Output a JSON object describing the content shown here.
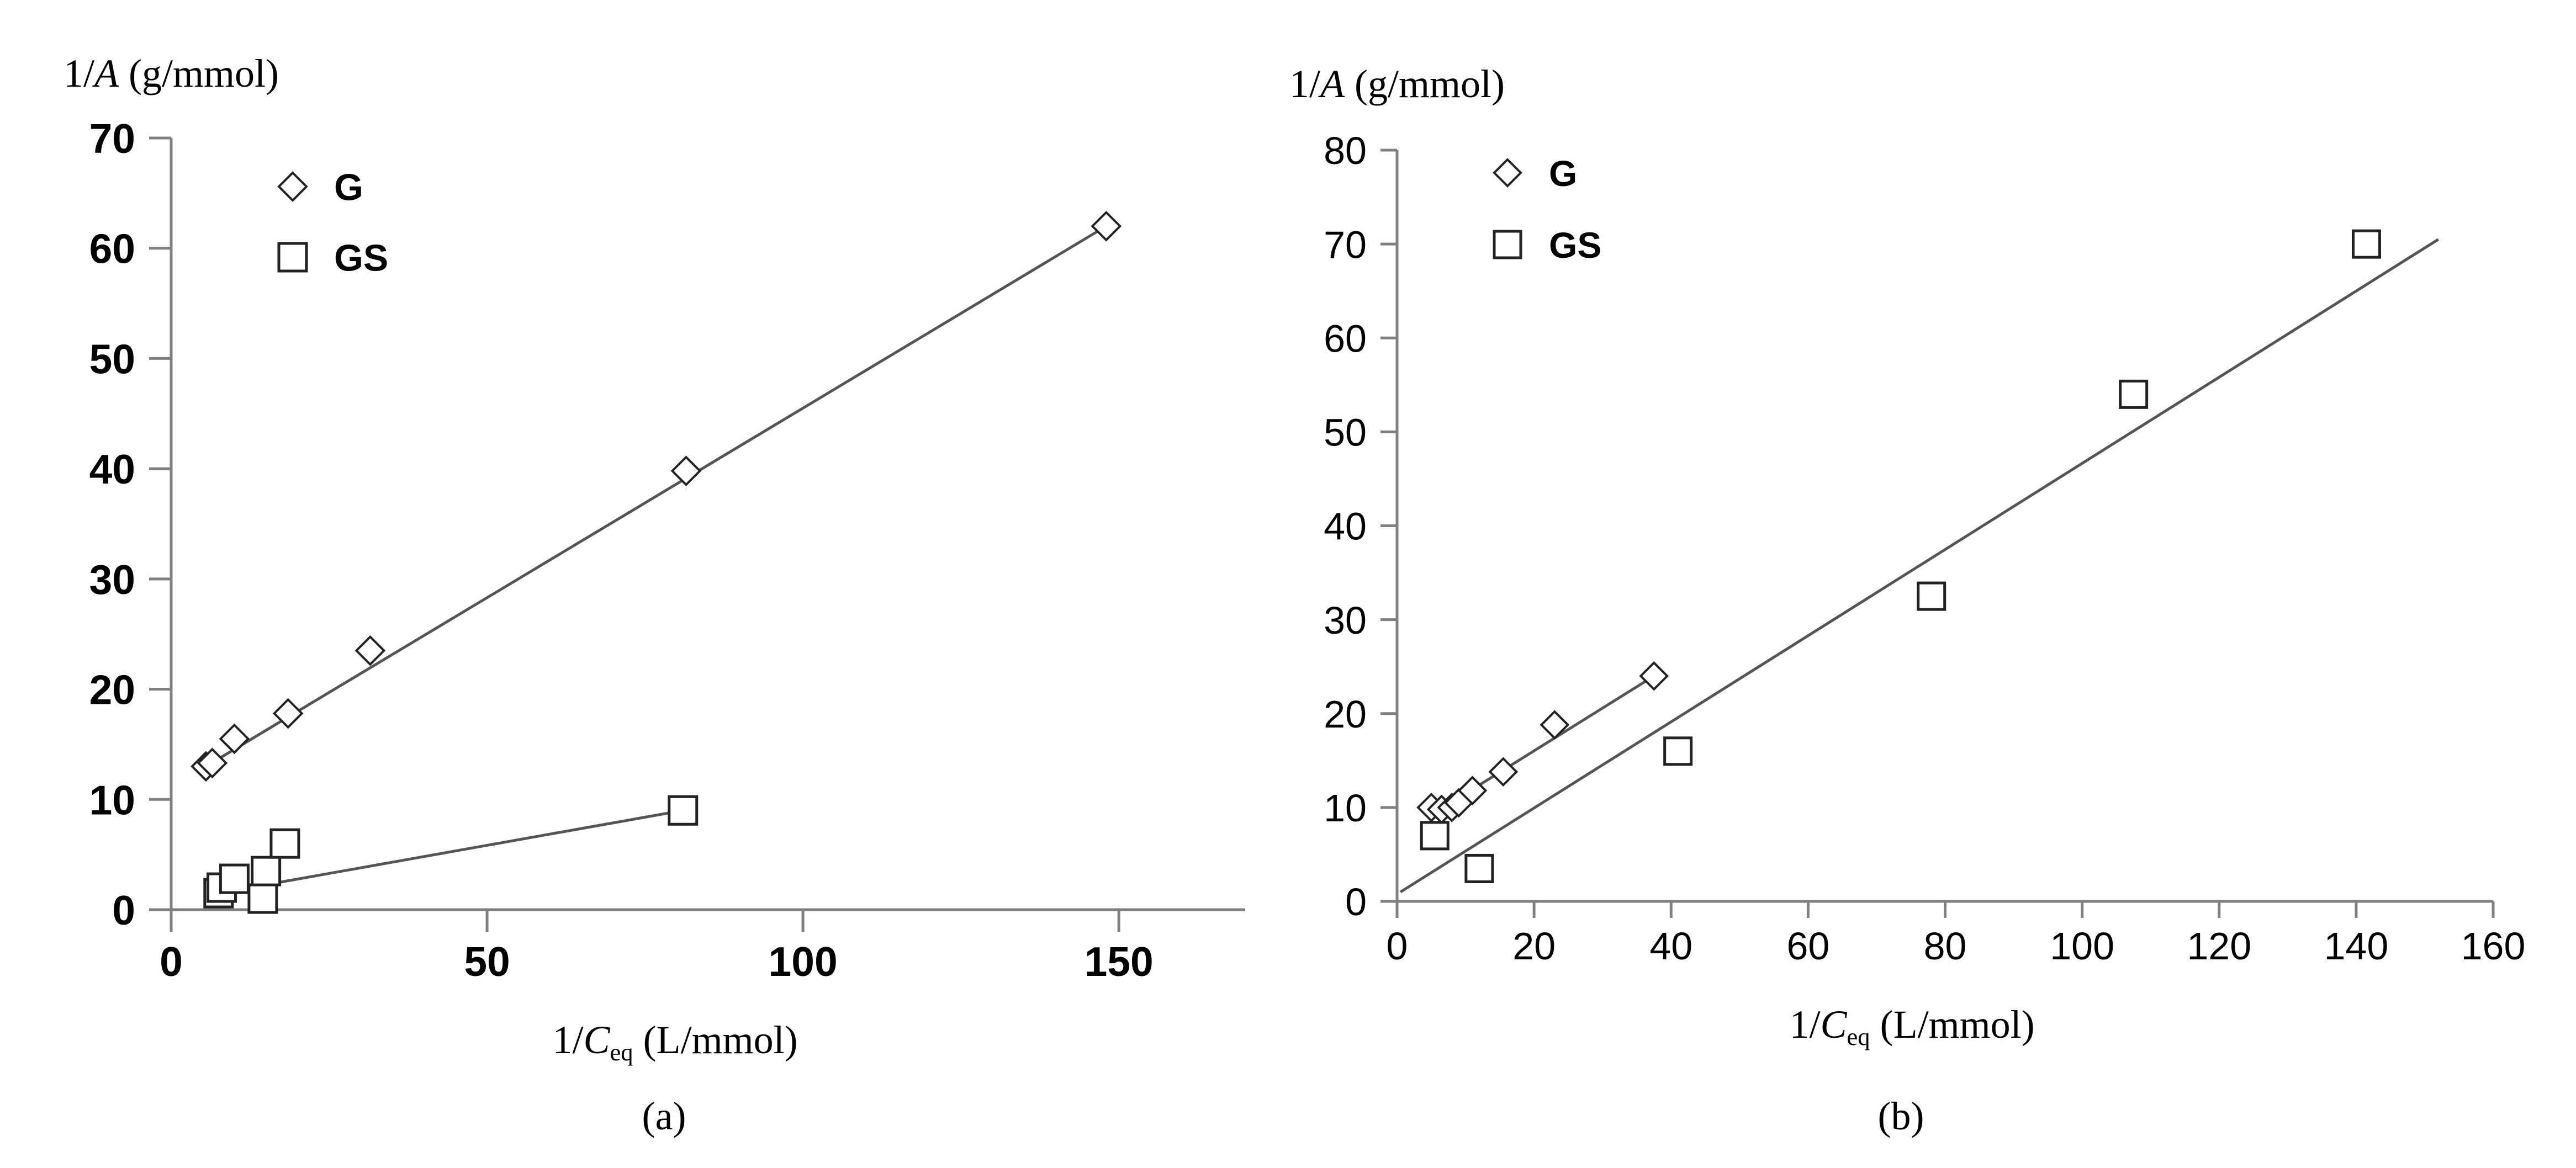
{
  "chart_data": [
    {
      "panel_label": "(a)",
      "type": "scatter",
      "title": "",
      "ylabel": "1/A (g/mmol)",
      "ylabel_parts": {
        "prefix": "1/",
        "var": "A",
        "unit": " (g/mmol)"
      },
      "xlabel": "1/Ceq (L/mmol)",
      "xlabel_parts": {
        "prefix": "1/",
        "var": "C",
        "sub": "eq",
        "unit": " (L/mmol)"
      },
      "xlim": [
        0,
        170
      ],
      "ylim": [
        0,
        70
      ],
      "xticks": [
        0,
        50,
        100,
        150
      ],
      "yticks": [
        0,
        10,
        20,
        30,
        40,
        50,
        60,
        70
      ],
      "tick_font_weight": "bold",
      "grid": false,
      "legend_position": "top-left",
      "series": [
        {
          "name": "G",
          "marker": "diamond",
          "points": [
            [
              5.5,
              13
            ],
            [
              6.5,
              13.3
            ],
            [
              10,
              15.5
            ],
            [
              18.5,
              17.8
            ],
            [
              31.5,
              23.5
            ],
            [
              81.5,
              39.8
            ],
            [
              148,
              62
            ]
          ],
          "fit": [
            [
              5.5,
              13
            ],
            [
              148,
              62
            ]
          ]
        },
        {
          "name": "GS",
          "marker": "square",
          "points": [
            [
              7.5,
              1.5
            ],
            [
              8,
              2
            ],
            [
              10,
              2.8
            ],
            [
              14.5,
              1
            ],
            [
              15,
              3.5
            ],
            [
              18,
              6
            ],
            [
              81,
              9
            ]
          ],
          "fit": [
            [
              7.5,
              1.5
            ],
            [
              81,
              9
            ]
          ]
        }
      ]
    },
    {
      "panel_label": "(b)",
      "type": "scatter",
      "title": "",
      "ylabel": "1/A (g/mmol)",
      "ylabel_parts": {
        "prefix": "1/",
        "var": "A",
        "unit": " (g/mmol)"
      },
      "xlabel": "1/Ceq (L/mmol)",
      "xlabel_parts": {
        "prefix": "1/",
        "var": "C",
        "sub": "eq",
        "unit": " (L/mmol)"
      },
      "xlim": [
        0,
        160
      ],
      "ylim": [
        0,
        80
      ],
      "xticks": [
        0,
        20,
        40,
        60,
        80,
        100,
        120,
        140,
        160
      ],
      "yticks": [
        0,
        10,
        20,
        30,
        40,
        50,
        60,
        70,
        80
      ],
      "tick_font_weight": "normal",
      "grid": false,
      "legend_position": "top-left",
      "series": [
        {
          "name": "G",
          "marker": "diamond",
          "points": [
            [
              5,
              10
            ],
            [
              6.5,
              9.8
            ],
            [
              8,
              10
            ],
            [
              9,
              10.5
            ],
            [
              11,
              11.8
            ],
            [
              15.5,
              13.8
            ],
            [
              23,
              18.8
            ],
            [
              37.5,
              24
            ]
          ],
          "fit": [
            [
              5,
              9.2
            ],
            [
              37.5,
              24
            ]
          ]
        },
        {
          "name": "GS",
          "marker": "square",
          "points": [
            [
              5.5,
              7
            ],
            [
              12,
              3.5
            ],
            [
              41,
              16
            ],
            [
              78,
              32.5
            ],
            [
              107.5,
              54
            ],
            [
              141.5,
              70
            ]
          ],
          "fit": [
            [
              0.5,
              1
            ],
            [
              152,
              70.5
            ]
          ]
        }
      ]
    }
  ]
}
